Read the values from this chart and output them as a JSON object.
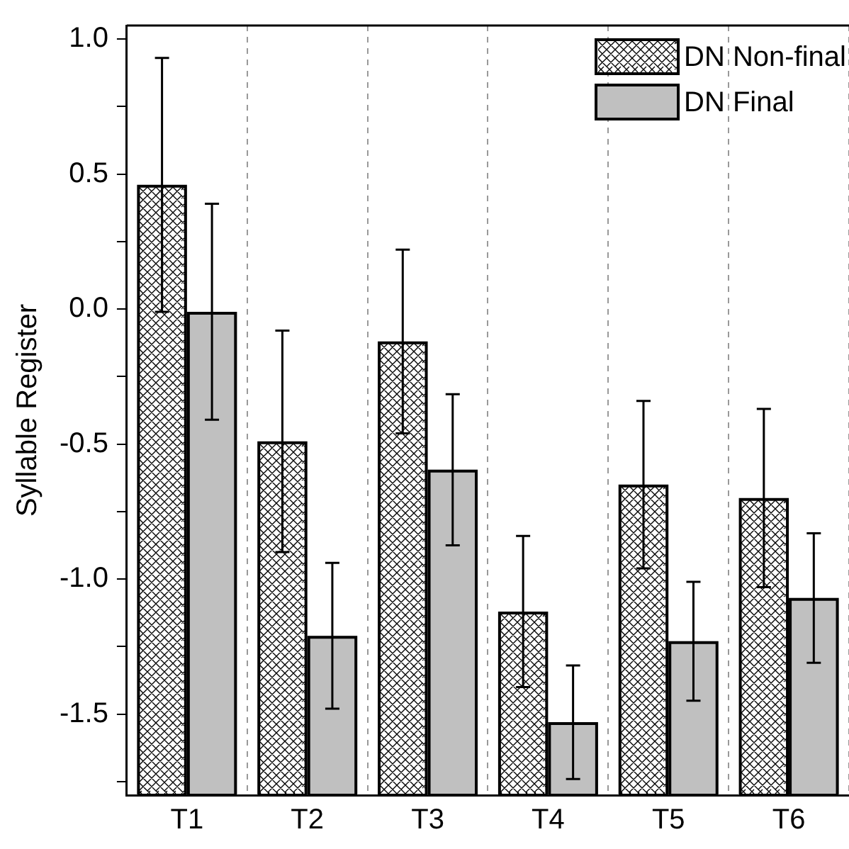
{
  "chart_data": {
    "type": "bar",
    "ylabel": "Syllable Register",
    "categories": [
      "T1",
      "T2",
      "T3",
      "T4",
      "T5",
      "T6"
    ],
    "series": [
      {
        "name": "DN Non-final",
        "color": "#ffffff",
        "base": [
          -1.8,
          -1.8,
          -1.8,
          -1.8,
          -1.8,
          -1.8
        ],
        "values": [
          2.26,
          1.31,
          1.68,
          0.68,
          1.15,
          1.1
        ],
        "errors": [
          0.47,
          0.41,
          0.34,
          0.28,
          0.31,
          0.33
        ]
      },
      {
        "name": "DN Final",
        "color": "#c0c0c0",
        "base": [
          -1.8,
          -1.8,
          -1.8,
          -1.8,
          -1.8,
          -1.8
        ],
        "values": [
          1.79,
          0.59,
          1.205,
          0.27,
          0.57,
          0.73
        ],
        "errors": [
          0.4,
          0.27,
          0.28,
          0.21,
          0.22,
          0.24
        ]
      }
    ],
    "ylim": [
      -1.8,
      1.05
    ],
    "yticks": [
      {
        "value": -1.75,
        "label": null
      },
      -1.5,
      {
        "value": -1.25,
        "label": null
      },
      {
        "value": -1,
        "label": "-1.0"
      },
      {
        "value": -0.75,
        "label": null
      },
      -0.5,
      {
        "value": -0.25,
        "label": null
      },
      {
        "value": 0,
        "label": "0.0"
      },
      {
        "value": 0.25,
        "label": null
      },
      0.5,
      {
        "value": 0.75,
        "label": null
      },
      {
        "value": 1,
        "label": "1.0"
      }
    ],
    "grid": "x",
    "legend": "top right"
  }
}
